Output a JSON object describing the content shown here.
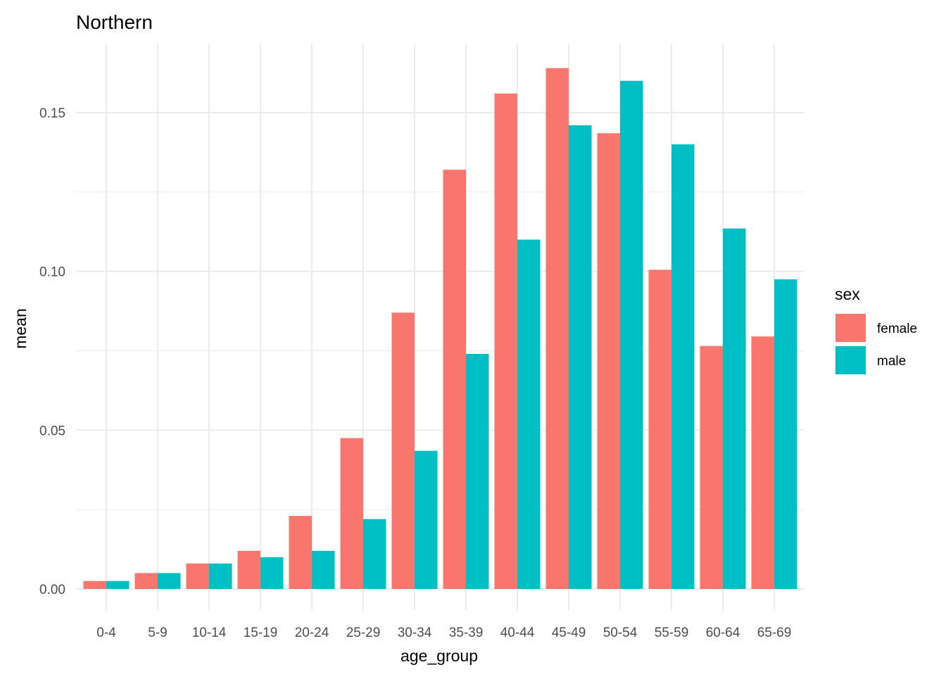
{
  "chart_data": {
    "type": "bar",
    "title": "Northern",
    "xlabel": "age_group",
    "ylabel": "mean",
    "categories": [
      "0-4",
      "5-9",
      "10-14",
      "15-19",
      "20-24",
      "25-29",
      "30-34",
      "35-39",
      "40-44",
      "45-49",
      "50-54",
      "55-59",
      "60-64",
      "65-69"
    ],
    "ylim": [
      0,
      0.165
    ],
    "y_ticks": [
      0.0,
      0.05,
      0.1,
      0.15
    ],
    "y_tick_labels": [
      "0.00",
      "0.05",
      "0.10",
      "0.15"
    ],
    "grid": true,
    "legend": {
      "title": "sex",
      "placement": "right"
    },
    "series": [
      {
        "name": "female",
        "color": "#F8766D",
        "values": [
          0.0025,
          0.005,
          0.008,
          0.012,
          0.023,
          0.0475,
          0.087,
          0.132,
          0.156,
          0.164,
          0.1435,
          0.1005,
          0.0765,
          0.0795
        ]
      },
      {
        "name": "male",
        "color": "#00BFC4",
        "values": [
          0.0025,
          0.005,
          0.008,
          0.01,
          0.012,
          0.022,
          0.0435,
          0.074,
          0.11,
          0.146,
          0.16,
          0.14,
          0.1135,
          0.0975
        ]
      }
    ]
  }
}
